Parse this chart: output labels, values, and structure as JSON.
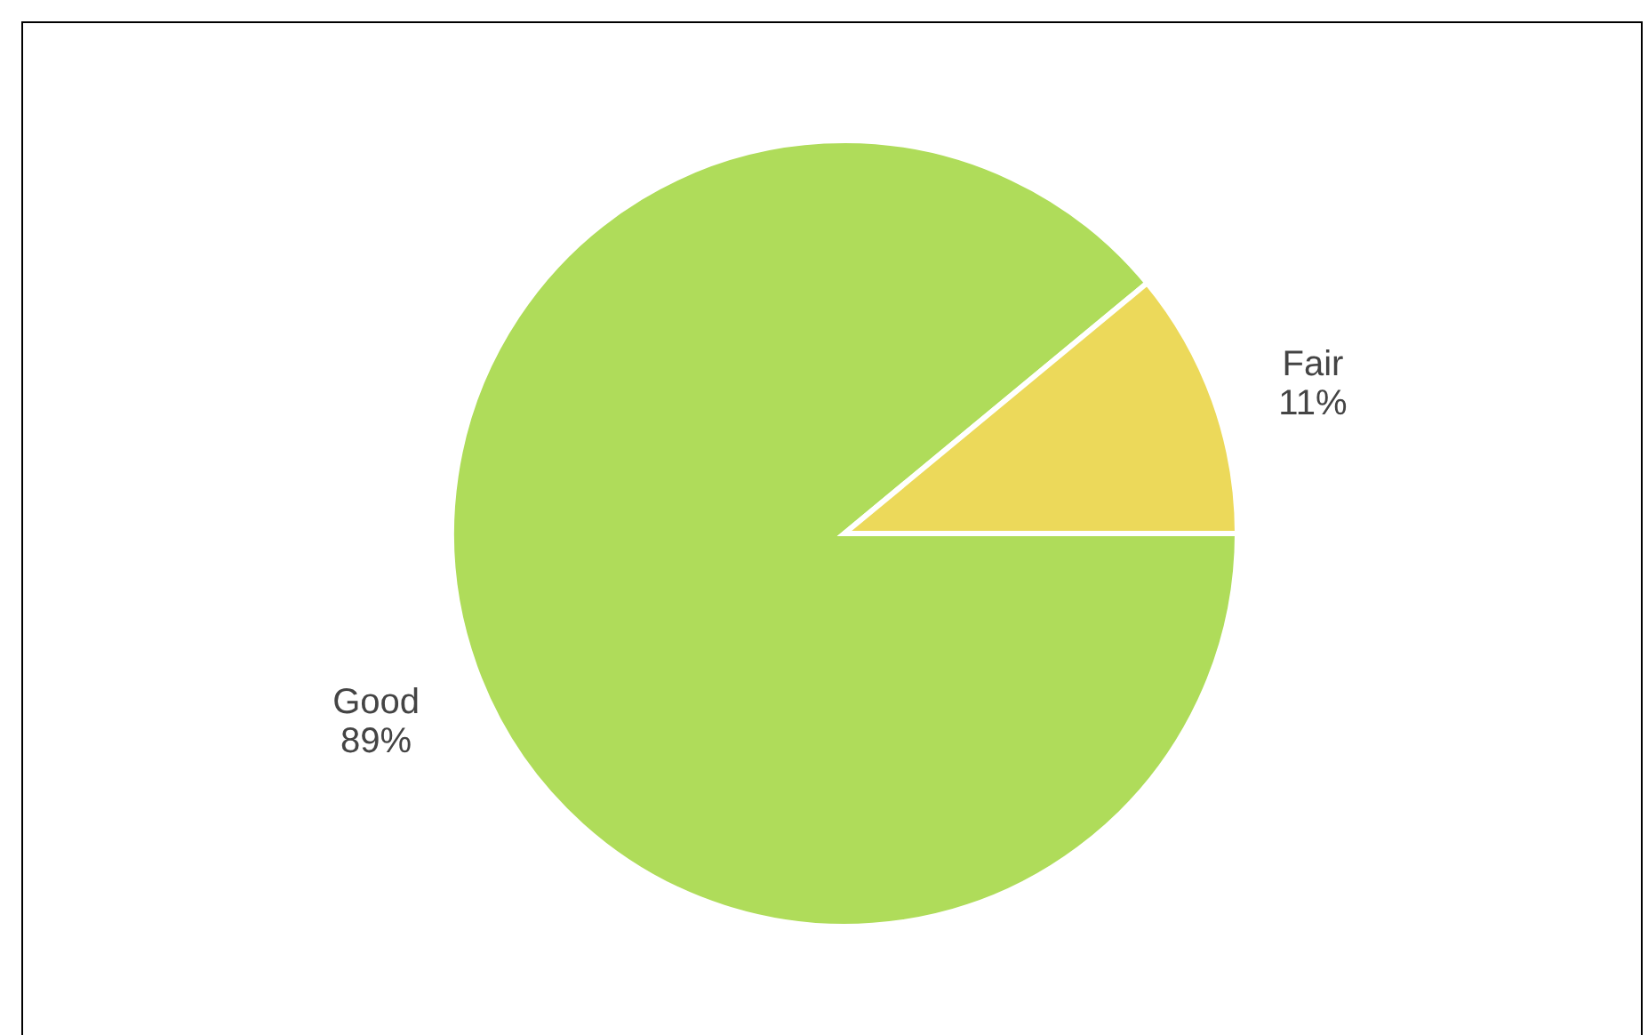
{
  "chart_data": {
    "type": "pie",
    "categories": [
      "Good",
      "Fair"
    ],
    "values": [
      89,
      11
    ],
    "colors": [
      "#afdc5a",
      "#ecd95a"
    ],
    "value_labels": [
      "89%",
      "11%"
    ]
  }
}
